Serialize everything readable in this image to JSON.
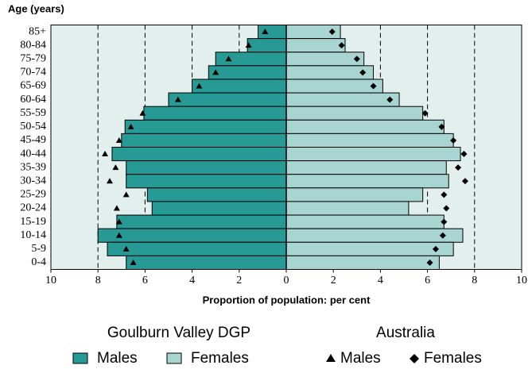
{
  "chart_data": {
    "type": "pyramid",
    "y_title": "Age (years)",
    "x_title": "Proportion of population: per cent",
    "categories": [
      "85+",
      "80-84",
      "75-79",
      "70-74",
      "65-69",
      "60-64",
      "55-59",
      "50-54",
      "45-49",
      "40-44",
      "35-39",
      "30-34",
      "25-29",
      "20-24",
      "15-19",
      "10-14",
      "5-9",
      "0-4"
    ],
    "xlim": [
      -10,
      10
    ],
    "xticks": [
      {
        "value": -10,
        "label": "10"
      },
      {
        "value": -8,
        "label": "8"
      },
      {
        "value": -6,
        "label": "6"
      },
      {
        "value": -4,
        "label": "4"
      },
      {
        "value": -2,
        "label": "2"
      },
      0,
      2,
      4,
      6,
      8,
      10
    ],
    "grid": true,
    "groups": [
      {
        "name": "Goulburn Valley DGP",
        "series": [
          {
            "name": "Males",
            "side": "left",
            "marker": "bar",
            "color": "#279a96",
            "values": [
              1.2,
              1.65,
              3.0,
              3.3,
              4.0,
              5.0,
              6.05,
              6.85,
              7.0,
              7.4,
              6.8,
              6.8,
              5.9,
              5.7,
              7.2,
              8.0,
              7.6,
              6.8
            ]
          },
          {
            "name": "Females",
            "side": "right",
            "marker": "bar",
            "color": "#a8d4d2",
            "values": [
              2.3,
              2.5,
              3.3,
              3.7,
              4.1,
              4.8,
              5.8,
              6.7,
              7.1,
              7.4,
              6.8,
              6.9,
              5.8,
              5.2,
              6.7,
              7.5,
              7.1,
              6.5
            ]
          }
        ]
      },
      {
        "name": "Australia",
        "series": [
          {
            "name": "Males",
            "side": "left",
            "marker": "triangle",
            "color": "#000000",
            "values": [
              0.9,
              1.6,
              2.45,
              3.0,
              3.7,
              4.6,
              6.1,
              6.6,
              7.1,
              7.7,
              7.25,
              7.5,
              6.8,
              7.2,
              7.1,
              7.1,
              6.8,
              6.5
            ]
          },
          {
            "name": "Females",
            "side": "right",
            "marker": "diamond",
            "color": "#000000",
            "values": [
              1.95,
              2.35,
              3.0,
              3.25,
              3.7,
              4.4,
              5.9,
              6.6,
              7.1,
              7.55,
              7.3,
              7.6,
              6.7,
              6.8,
              6.7,
              6.65,
              6.35,
              6.1
            ]
          }
        ]
      }
    ]
  }
}
